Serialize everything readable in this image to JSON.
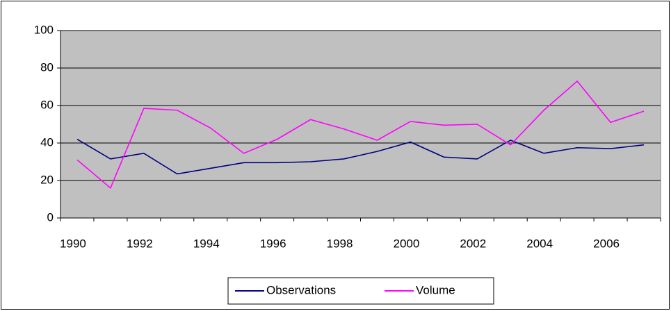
{
  "chart_data": {
    "type": "line",
    "categories": [
      "1990",
      null,
      "1992",
      null,
      "1994",
      null,
      "1996",
      null,
      "1998",
      null,
      "2000",
      null,
      "2002",
      null,
      "2004",
      null,
      "2006",
      null
    ],
    "series": [
      {
        "name": "Observations",
        "color": "#000080",
        "values": [
          42,
          31.5,
          34.5,
          23.5,
          26.5,
          29.5,
          29.5,
          30,
          31.5,
          35.5,
          40.5,
          32.5,
          31.5,
          41.5,
          34.5,
          37.5,
          37,
          39
        ]
      },
      {
        "name": "Volume",
        "color": "#ff00ff",
        "values": [
          31,
          16,
          58.5,
          57.5,
          48,
          34.5,
          42,
          52.5,
          47.5,
          41.5,
          51.5,
          49.5,
          50,
          39,
          57.5,
          73,
          51,
          57
        ]
      }
    ],
    "ylim": [
      0,
      100
    ],
    "yticks": [
      0,
      20,
      40,
      60,
      80,
      100
    ],
    "grid": true,
    "plot_background": "#c0c0c0",
    "legend": "bottom"
  }
}
